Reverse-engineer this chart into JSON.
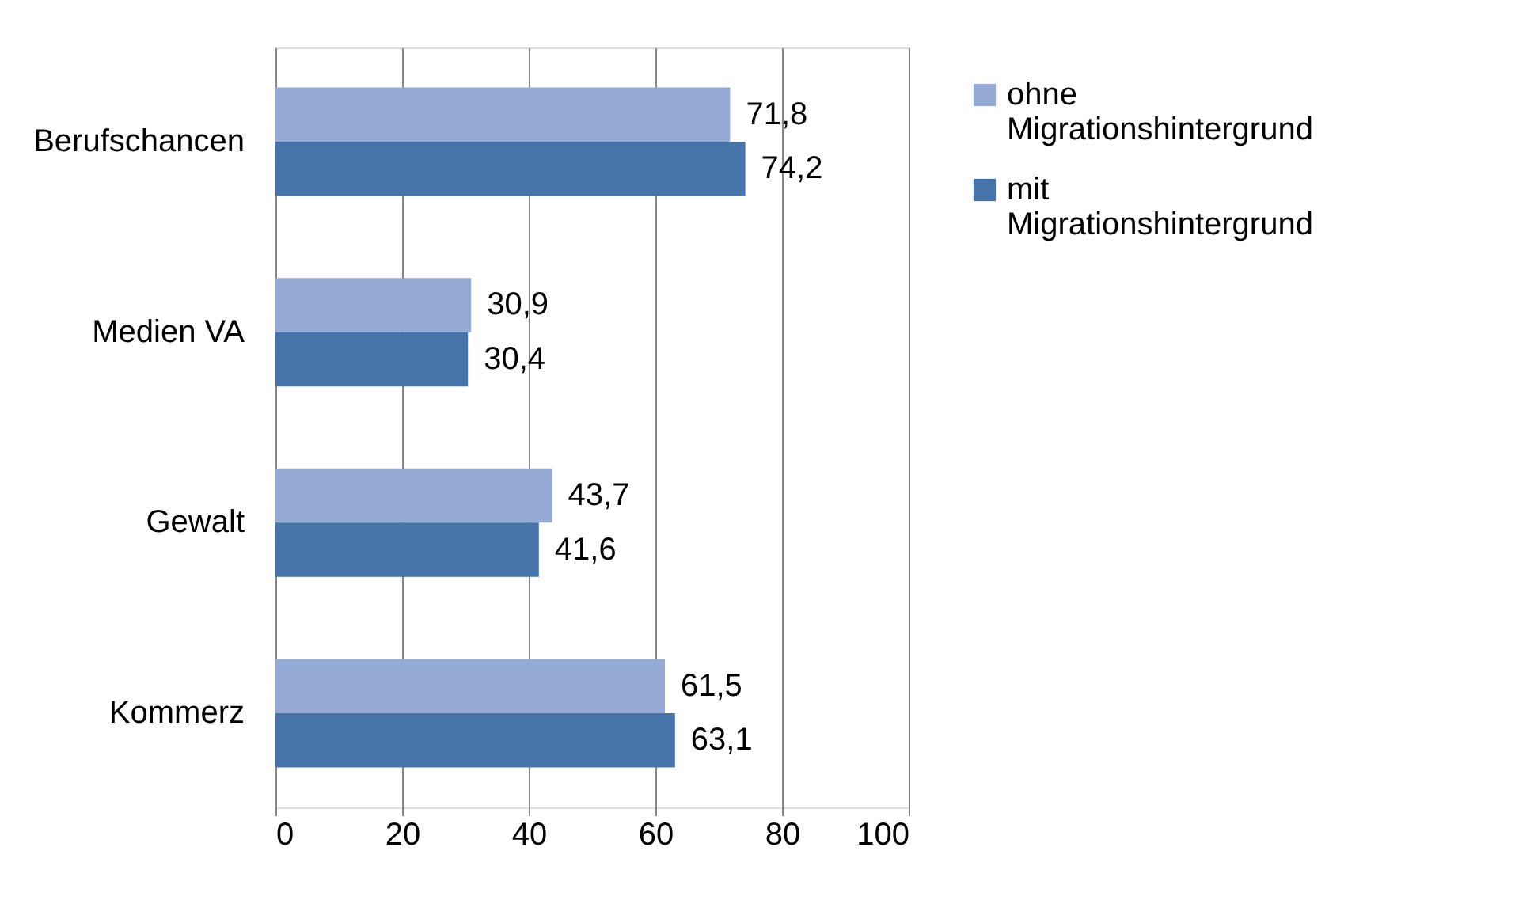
{
  "chart_data": {
    "type": "bar",
    "orientation": "horizontal",
    "categories": [
      "Berufschancen",
      "Medien VA",
      "Gewalt",
      "Kommerz"
    ],
    "series": [
      {
        "name": "ohne Migrationshintergrund",
        "color": "#95abd5",
        "values": [
          71.8,
          30.9,
          43.7,
          61.5
        ],
        "value_labels": [
          "71,8",
          "30,9",
          "43,7",
          "61,5"
        ]
      },
      {
        "name": "mit Migrationshintergrund",
        "color": "#4674a8",
        "values": [
          74.2,
          30.4,
          41.6,
          63.1
        ],
        "value_labels": [
          "74,2",
          "30,4",
          "41,6",
          "63,1"
        ]
      }
    ],
    "xlim": [
      0,
      100
    ],
    "xticks": [
      0,
      20,
      40,
      60,
      80,
      100
    ],
    "grid": "x",
    "legend": "right"
  }
}
